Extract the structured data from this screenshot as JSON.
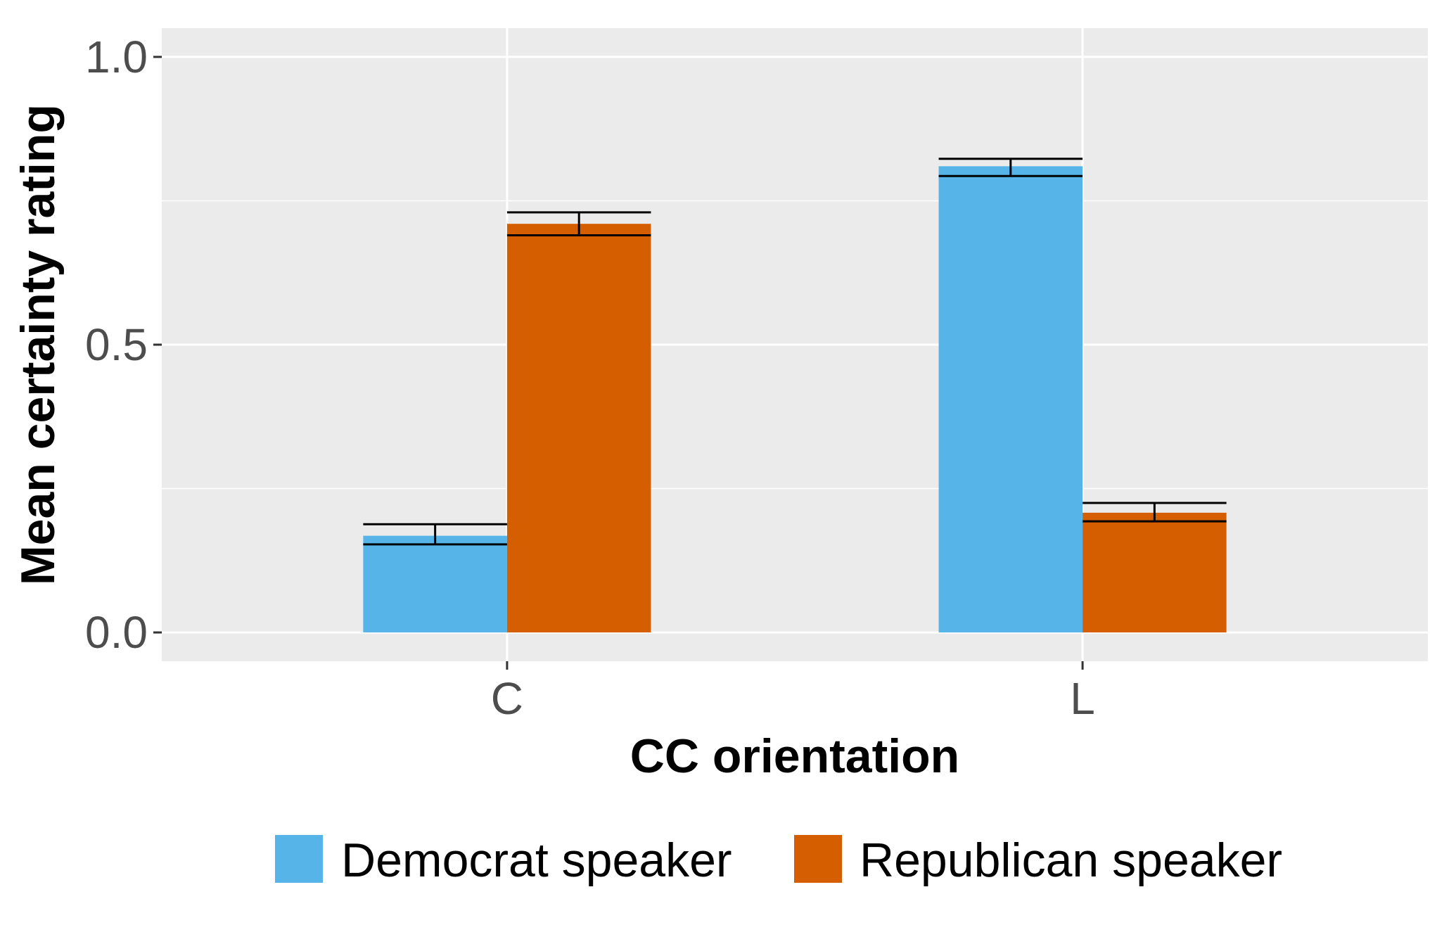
{
  "chart_data": {
    "type": "bar",
    "categories": [
      "C",
      "L"
    ],
    "series": [
      {
        "name": "Democrat speaker",
        "color": "#56B4E9",
        "values": [
          0.168,
          0.81
        ],
        "error_low": [
          0.153,
          0.793
        ],
        "error_high": [
          0.188,
          0.823
        ]
      },
      {
        "name": "Republican speaker",
        "color": "#D55E00",
        "values": [
          0.71,
          0.208
        ],
        "error_low": [
          0.69,
          0.193
        ],
        "error_high": [
          0.73,
          0.225
        ]
      }
    ],
    "xlabel": "CC orientation",
    "ylabel": "Mean certainty rating",
    "ylim": [
      -0.05,
      1.05
    ],
    "yticks": [
      0.0,
      0.5,
      1.0
    ],
    "ytick_labels": [
      "0.0",
      "0.5",
      "1.0"
    ],
    "grid": true,
    "legend_position": "bottom",
    "panel_background": "#EBEBEB"
  }
}
